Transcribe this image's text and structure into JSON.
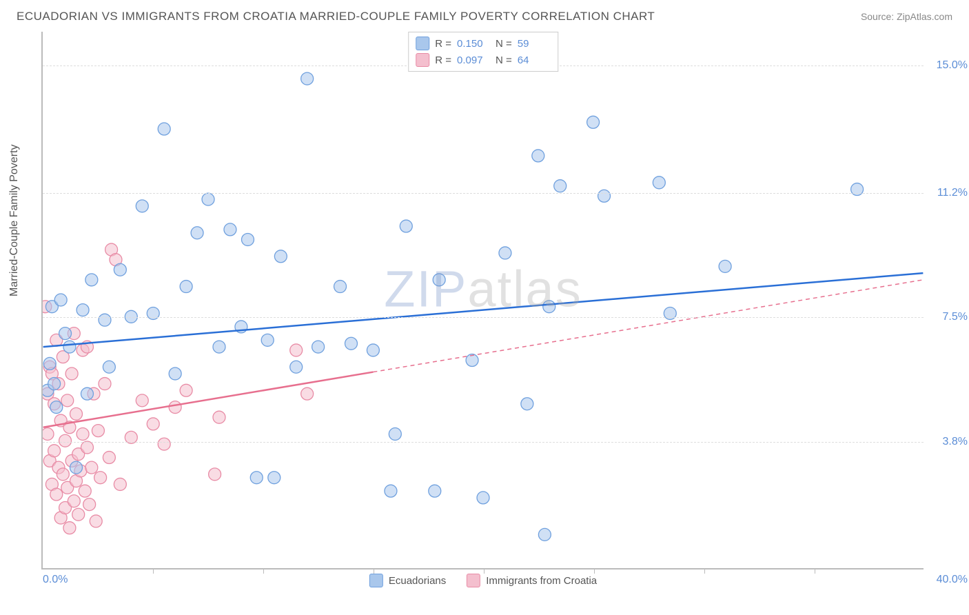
{
  "title": "ECUADORIAN VS IMMIGRANTS FROM CROATIA MARRIED-COUPLE FAMILY POVERTY CORRELATION CHART",
  "source": "Source: ZipAtlas.com",
  "ylabel": "Married-Couple Family Poverty",
  "watermark": {
    "part1": "ZIP",
    "part2": "atlas"
  },
  "chart": {
    "type": "scatter",
    "xlim": [
      0,
      40
    ],
    "ylim": [
      0,
      16
    ],
    "xtick_min": "0.0%",
    "xtick_max": "40.0%",
    "xtick_marks": [
      5,
      10,
      15,
      20,
      25,
      30,
      35
    ],
    "yticks": [
      {
        "v": 3.8,
        "label": "3.8%"
      },
      {
        "v": 7.5,
        "label": "7.5%"
      },
      {
        "v": 11.2,
        "label": "11.2%"
      },
      {
        "v": 15.0,
        "label": "15.0%"
      }
    ],
    "background_color": "#ffffff",
    "grid_color": "#dddddd",
    "marker_radius": 9,
    "marker_opacity": 0.55,
    "line_width": 2.5,
    "series": [
      {
        "name": "Ecuadorians",
        "color_fill": "#a9c7ec",
        "color_stroke": "#6fa0de",
        "line_color": "#2a6fd6",
        "r_value": "0.150",
        "n_value": "59",
        "trend": {
          "x1": 0,
          "y1": 6.6,
          "x2": 40,
          "y2": 8.8,
          "solid_until_x": 40
        },
        "points": [
          [
            0.2,
            5.3
          ],
          [
            0.3,
            6.1
          ],
          [
            0.4,
            7.8
          ],
          [
            0.5,
            5.5
          ],
          [
            0.6,
            4.8
          ],
          [
            0.8,
            8.0
          ],
          [
            1.0,
            7.0
          ],
          [
            1.2,
            6.6
          ],
          [
            1.5,
            3.0
          ],
          [
            1.8,
            7.7
          ],
          [
            2.0,
            5.2
          ],
          [
            2.2,
            8.6
          ],
          [
            2.8,
            7.4
          ],
          [
            3.0,
            6.0
          ],
          [
            3.5,
            8.9
          ],
          [
            4.0,
            7.5
          ],
          [
            4.5,
            10.8
          ],
          [
            5.0,
            7.6
          ],
          [
            5.5,
            13.1
          ],
          [
            6.0,
            5.8
          ],
          [
            6.5,
            8.4
          ],
          [
            7.0,
            10.0
          ],
          [
            7.5,
            11.0
          ],
          [
            8.0,
            6.6
          ],
          [
            8.5,
            10.1
          ],
          [
            9.0,
            7.2
          ],
          [
            9.3,
            9.8
          ],
          [
            9.7,
            2.7
          ],
          [
            10.2,
            6.8
          ],
          [
            10.5,
            2.7
          ],
          [
            10.8,
            9.3
          ],
          [
            11.5,
            6.0
          ],
          [
            12.0,
            14.6
          ],
          [
            12.5,
            6.6
          ],
          [
            13.5,
            8.4
          ],
          [
            14.0,
            6.7
          ],
          [
            15.0,
            6.5
          ],
          [
            15.8,
            2.3
          ],
          [
            16.0,
            4.0
          ],
          [
            16.5,
            10.2
          ],
          [
            17.8,
            2.3
          ],
          [
            18.0,
            8.6
          ],
          [
            19.5,
            6.2
          ],
          [
            20.0,
            2.1
          ],
          [
            21.0,
            9.4
          ],
          [
            22.0,
            4.9
          ],
          [
            22.5,
            12.3
          ],
          [
            22.8,
            1.0
          ],
          [
            23.0,
            7.8
          ],
          [
            23.5,
            11.4
          ],
          [
            25.0,
            13.3
          ],
          [
            25.5,
            11.1
          ],
          [
            28.0,
            11.5
          ],
          [
            28.5,
            7.6
          ],
          [
            31.0,
            9.0
          ],
          [
            37.0,
            11.3
          ]
        ]
      },
      {
        "name": "Immigrants from Croatia",
        "color_fill": "#f4bfce",
        "color_stroke": "#e88ba5",
        "line_color": "#e76f8e",
        "r_value": "0.097",
        "n_value": "64",
        "trend": {
          "x1": 0,
          "y1": 4.2,
          "x2": 40,
          "y2": 8.6,
          "solid_until_x": 15
        },
        "points": [
          [
            0.1,
            7.8
          ],
          [
            0.2,
            4.0
          ],
          [
            0.2,
            5.2
          ],
          [
            0.3,
            3.2
          ],
          [
            0.3,
            6.0
          ],
          [
            0.4,
            2.5
          ],
          [
            0.4,
            5.8
          ],
          [
            0.5,
            3.5
          ],
          [
            0.5,
            4.9
          ],
          [
            0.6,
            2.2
          ],
          [
            0.6,
            6.8
          ],
          [
            0.7,
            3.0
          ],
          [
            0.7,
            5.5
          ],
          [
            0.8,
            1.5
          ],
          [
            0.8,
            4.4
          ],
          [
            0.9,
            2.8
          ],
          [
            0.9,
            6.3
          ],
          [
            1.0,
            1.8
          ],
          [
            1.0,
            3.8
          ],
          [
            1.1,
            2.4
          ],
          [
            1.1,
            5.0
          ],
          [
            1.2,
            1.2
          ],
          [
            1.2,
            4.2
          ],
          [
            1.3,
            3.2
          ],
          [
            1.3,
            5.8
          ],
          [
            1.4,
            2.0
          ],
          [
            1.4,
            7.0
          ],
          [
            1.5,
            2.6
          ],
          [
            1.5,
            4.6
          ],
          [
            1.6,
            1.6
          ],
          [
            1.6,
            3.4
          ],
          [
            1.7,
            2.9
          ],
          [
            1.8,
            4.0
          ],
          [
            1.8,
            6.5
          ],
          [
            1.9,
            2.3
          ],
          [
            2.0,
            3.6
          ],
          [
            2.0,
            6.6
          ],
          [
            2.1,
            1.9
          ],
          [
            2.2,
            3.0
          ],
          [
            2.3,
            5.2
          ],
          [
            2.4,
            1.4
          ],
          [
            2.5,
            4.1
          ],
          [
            2.6,
            2.7
          ],
          [
            2.8,
            5.5
          ],
          [
            3.0,
            3.3
          ],
          [
            3.1,
            9.5
          ],
          [
            3.3,
            9.2
          ],
          [
            3.5,
            2.5
          ],
          [
            4.0,
            3.9
          ],
          [
            4.5,
            5.0
          ],
          [
            5.0,
            4.3
          ],
          [
            5.5,
            3.7
          ],
          [
            6.0,
            4.8
          ],
          [
            6.5,
            5.3
          ],
          [
            7.8,
            2.8
          ],
          [
            8.0,
            4.5
          ],
          [
            11.5,
            6.5
          ],
          [
            12.0,
            5.2
          ]
        ]
      }
    ]
  },
  "bottom_legend": [
    {
      "label": "Ecuadorians",
      "fill": "#a9c7ec",
      "stroke": "#6fa0de"
    },
    {
      "label": "Immigrants from Croatia",
      "fill": "#f4bfce",
      "stroke": "#e88ba5"
    }
  ]
}
